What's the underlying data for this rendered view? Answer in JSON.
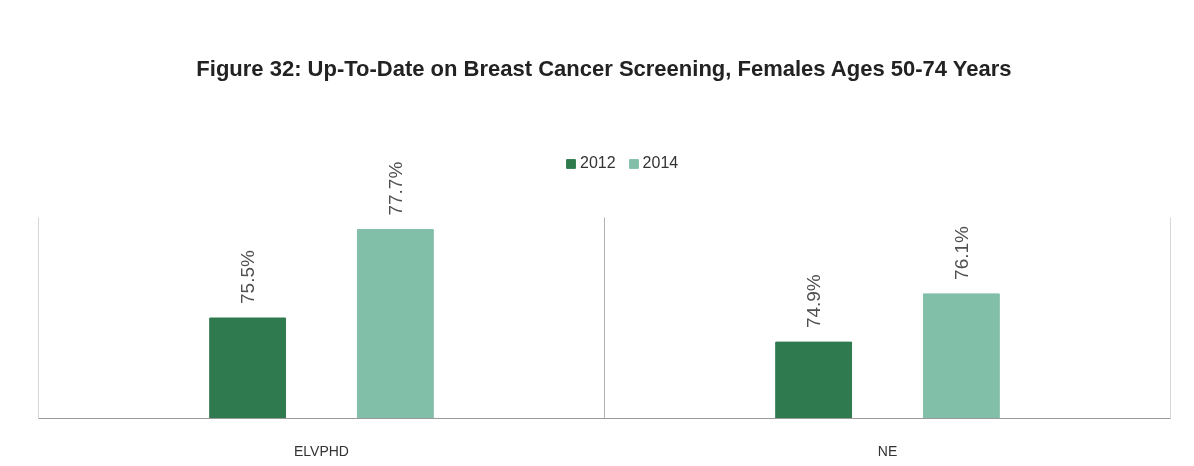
{
  "chart_data": {
    "type": "bar",
    "title": "Figure 32: Up-To-Date on Breast Cancer Screening, Females Ages 50-74 Years",
    "categories": [
      "ELVPHD",
      "NE"
    ],
    "series": [
      {
        "name": "2012",
        "color": "#2f7a4e",
        "values": [
          75.5,
          74.9
        ],
        "value_labels": [
          "75.5%",
          "74.9%"
        ]
      },
      {
        "name": "2014",
        "color": "#82bfa8",
        "values": [
          77.7,
          76.1
        ],
        "value_labels": [
          "77.7%",
          "76.1%"
        ]
      }
    ],
    "ylim": [
      73,
      78
    ],
    "tick_labels": "x",
    "grid": "x",
    "legend": "top"
  }
}
